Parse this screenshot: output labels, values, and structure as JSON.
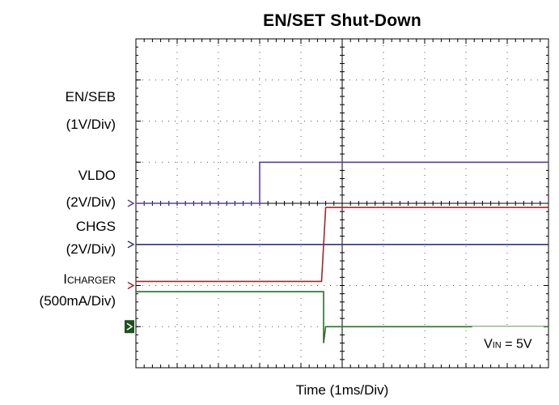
{
  "chart_data": {
    "type": "line",
    "title": "EN/SET Shut-Down",
    "xlabel": "Time  (1ms/Div)",
    "xlim": [
      0,
      10
    ],
    "ylim": [
      0,
      8
    ],
    "grid": true,
    "channels": [
      {
        "label": "EN/SEB",
        "scale": "(1V/Div)",
        "color": "#5b3fa6",
        "marker_level": 4,
        "points": [
          [
            0,
            4
          ],
          [
            3,
            4
          ],
          [
            3,
            5
          ],
          [
            10,
            5
          ]
        ]
      },
      {
        "label": "VLDO",
        "scale": "(2V/Div)",
        "color": "#2a3580",
        "marker_level": 3.0,
        "points": [
          [
            0,
            3.0
          ],
          [
            10,
            3.0
          ]
        ]
      },
      {
        "label": "CHGS",
        "scale": "(2V/Div)",
        "color": "#a02828",
        "marker_level": 2.0,
        "points": [
          [
            0,
            2.1
          ],
          [
            4.5,
            2.1
          ],
          [
            4.6,
            3.9
          ],
          [
            10,
            3.9
          ]
        ]
      },
      {
        "label_main": "I",
        "label_sub": "CHARGER",
        "scale": "(500mA/Div)",
        "color": "#2a6e2a",
        "marker_level": 1.0,
        "points": [
          [
            0,
            1.85
          ],
          [
            4.55,
            1.85
          ],
          [
            4.55,
            0.6
          ],
          [
            4.6,
            1.0
          ],
          [
            10,
            1.0
          ]
        ]
      }
    ],
    "annotation": {
      "main": "V",
      "sub": "IN",
      "rest": " = 5V"
    }
  }
}
